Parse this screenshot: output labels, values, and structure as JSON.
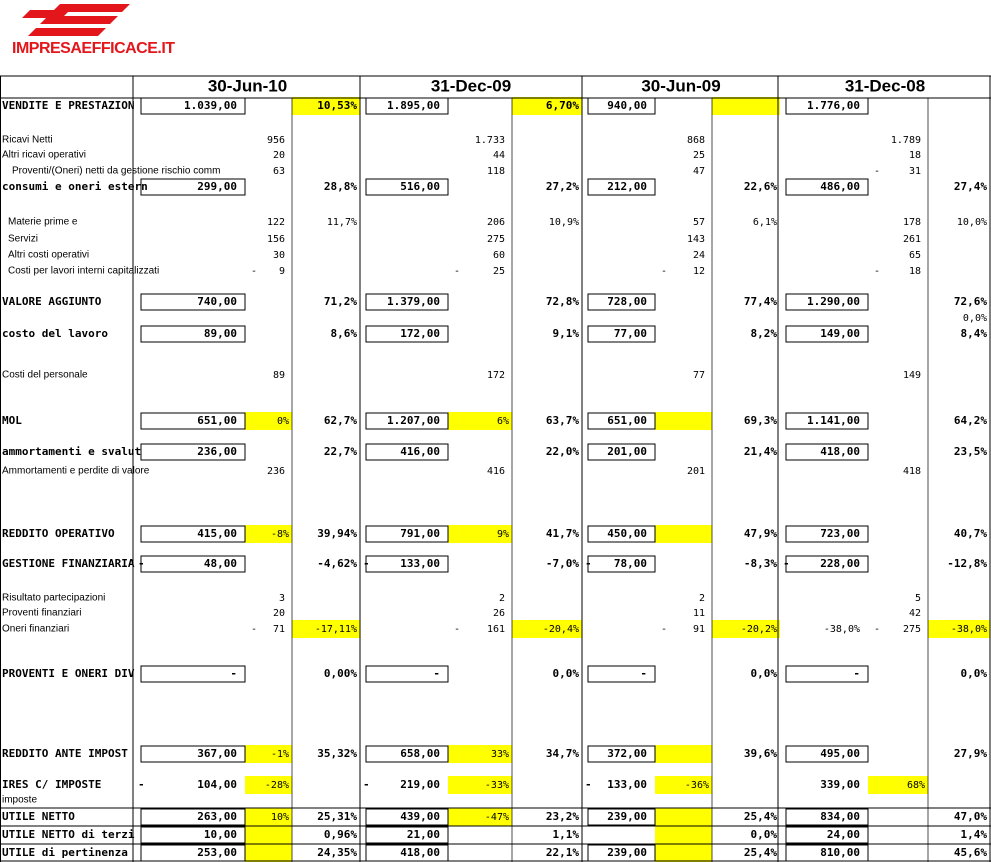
{
  "logo": {
    "text": "IMPRESAEFFICACE.IT"
  },
  "periods": [
    "30-Jun-10",
    "31-Dec-09",
    "30-Jun-09",
    "31-Dec-08"
  ],
  "highlight_color": "#ffff00",
  "rows": [
    {
      "label": "VENDITE E PRESTAZION",
      "style": "main",
      "cells": [
        {
          "value": "1.039,00",
          "pct": "10,53%",
          "highlight": [
            "pct"
          ]
        },
        {
          "value": "1.895,00",
          "pct": "6,70%",
          "highlight": [
            "pct"
          ]
        },
        {
          "value": "940,00",
          "highlight": [
            "pct"
          ]
        },
        {
          "value": "1.776,00"
        }
      ]
    },
    {
      "label": "Ricavi Netti",
      "style": "detail",
      "cells": [
        {
          "detail": "956"
        },
        {
          "detail": "1.733"
        },
        {
          "detail": "868"
        },
        {
          "detail": "1.789"
        }
      ]
    },
    {
      "label": "Altri ricavi operativi",
      "style": "detail",
      "cells": [
        {
          "detail": "20"
        },
        {
          "detail": "44"
        },
        {
          "detail": "25"
        },
        {
          "detail": "18"
        }
      ]
    },
    {
      "label": "Proventi/(Oneri) netti da gestione rischio comm",
      "style": "detail",
      "cells": [
        {
          "detail": "63"
        },
        {
          "detail": "118"
        },
        {
          "detail": "47"
        },
        {
          "detail": "31",
          "detail_sign": "-"
        }
      ]
    },
    {
      "label": "consumi e oneri estern",
      "style": "main",
      "cells": [
        {
          "value": "299,00",
          "pct": "28,8%"
        },
        {
          "value": "516,00",
          "pct": "27,2%"
        },
        {
          "value": "212,00",
          "pct": "22,6%"
        },
        {
          "value": "486,00",
          "pct": "27,4%"
        }
      ]
    },
    {
      "label": "Materie prime e",
      "style": "detail",
      "cells": [
        {
          "detail": "122",
          "pct": "11,7%"
        },
        {
          "detail": "206",
          "pct": "10,9%"
        },
        {
          "detail": "57",
          "pct": "6,1%"
        },
        {
          "detail": "178",
          "pct": "10,0%"
        }
      ]
    },
    {
      "label": "Servizi",
      "style": "detail",
      "cells": [
        {
          "detail": "156"
        },
        {
          "detail": "275"
        },
        {
          "detail": "143"
        },
        {
          "detail": "261"
        }
      ]
    },
    {
      "label": "Altri costi operativi",
      "style": "detail",
      "cells": [
        {
          "detail": "30"
        },
        {
          "detail": "60"
        },
        {
          "detail": "24"
        },
        {
          "detail": "65"
        }
      ]
    },
    {
      "label": "Costi per lavori interni capitalizzati",
      "style": "detail",
      "cells": [
        {
          "detail": "9",
          "detail_sign": "-"
        },
        {
          "detail": "25",
          "detail_sign": "-"
        },
        {
          "detail": "12",
          "detail_sign": "-"
        },
        {
          "detail": "18",
          "detail_sign": "-"
        }
      ]
    },
    {
      "label": "VALORE AGGIUNTO",
      "style": "main",
      "cells": [
        {
          "value": "740,00",
          "pct": "71,2%"
        },
        {
          "value": "1.379,00",
          "pct": "72,8%"
        },
        {
          "value": "728,00",
          "pct": "77,4%"
        },
        {
          "value": "1.290,00",
          "pct": "72,6%"
        }
      ]
    },
    {
      "style": "detail",
      "cells": [
        {},
        {},
        {},
        {
          "pct": "0,0%"
        }
      ]
    },
    {
      "label": "costo del lavoro",
      "style": "main",
      "cells": [
        {
          "value": "89,00",
          "pct": "8,6%"
        },
        {
          "value": "172,00",
          "pct": "9,1%"
        },
        {
          "value": "77,00",
          "pct": "8,2%"
        },
        {
          "value": "149,00",
          "pct": "8,4%"
        }
      ]
    },
    {
      "label": "Costi del personale",
      "style": "detail",
      "cells": [
        {
          "detail": "89"
        },
        {
          "detail": "172"
        },
        {
          "detail": "77"
        },
        {
          "detail": "149"
        }
      ]
    },
    {
      "label": "MOL",
      "style": "main",
      "cells": [
        {
          "value": "651,00",
          "change": "0%",
          "pct": "62,7%",
          "highlight": [
            "change"
          ]
        },
        {
          "value": "1.207,00",
          "change": "6%",
          "pct": "63,7%",
          "highlight": [
            "change"
          ]
        },
        {
          "value": "651,00",
          "pct": "69,3%",
          "highlight": [
            "change"
          ]
        },
        {
          "value": "1.141,00",
          "pct": "64,2%"
        }
      ]
    },
    {
      "label": "ammortamenti e svalut",
      "style": "main",
      "cells": [
        {
          "value": "236,00",
          "pct": "22,7%"
        },
        {
          "value": "416,00",
          "pct": "22,0%"
        },
        {
          "value": "201,00",
          "pct": "21,4%"
        },
        {
          "value": "418,00",
          "pct": "23,5%"
        }
      ]
    },
    {
      "label": "Ammortamenti e perdite di valore",
      "style": "detail",
      "cells": [
        {
          "detail": "236"
        },
        {
          "detail": "416"
        },
        {
          "detail": "201"
        },
        {
          "detail": "418"
        }
      ]
    },
    {
      "label": "REDDITO OPERATIVO",
      "style": "main",
      "cells": [
        {
          "value": "415,00",
          "change": "-8%",
          "pct": "39,94%",
          "highlight": [
            "change"
          ]
        },
        {
          "value": "791,00",
          "change": "9%",
          "pct": "41,7%",
          "highlight": [
            "change"
          ]
        },
        {
          "value": "450,00",
          "pct": "47,9%",
          "highlight": [
            "change"
          ]
        },
        {
          "value": "723,00",
          "pct": "40,7%"
        }
      ]
    },
    {
      "label": "GESTIONE FINANZIARIA",
      "style": "main",
      "cells": [
        {
          "sign": "-",
          "value": "48,00",
          "pct": "-4,62%"
        },
        {
          "sign": "-",
          "value": "133,00",
          "pct": "-7,0%"
        },
        {
          "sign": "-",
          "value": "78,00",
          "pct": "-8,3%"
        },
        {
          "sign": "-",
          "value": "228,00",
          "pct": "-12,8%"
        }
      ]
    },
    {
      "label": "Risultato partecipazioni",
      "style": "detail",
      "cells": [
        {
          "detail": "3"
        },
        {
          "detail": "2"
        },
        {
          "detail": "2"
        },
        {
          "detail": "5"
        }
      ]
    },
    {
      "label": "Proventi finanziari",
      "style": "detail",
      "cells": [
        {
          "detail": "20"
        },
        {
          "detail": "26"
        },
        {
          "detail": "11"
        },
        {
          "detail": "42"
        }
      ]
    },
    {
      "label": "Oneri finanziari",
      "style": "detail",
      "cells": [
        {
          "detail": "71",
          "detail_sign": "-",
          "pct": "-17,11%",
          "highlight": [
            "pct"
          ]
        },
        {
          "detail": "161",
          "detail_sign": "-",
          "pct": "-20,4%",
          "highlight": [
            "pct"
          ]
        },
        {
          "detail": "91",
          "detail_sign": "-",
          "pct": "-20,2%",
          "highlight": [
            "pct"
          ]
        },
        {
          "value": "-38,0%",
          "detail": "275",
          "detail_sign": "-",
          "pct": "-38,0%",
          "highlight": [
            "pct"
          ]
        }
      ]
    },
    {
      "label": "PROVENTI E ONERI DIV",
      "style": "main",
      "cells": [
        {
          "value": "-",
          "pct": "0,00%"
        },
        {
          "value": "-",
          "pct": "0,0%"
        },
        {
          "value": "-",
          "pct": "0,0%"
        },
        {
          "value": "-",
          "pct": "0,0%"
        }
      ]
    },
    {
      "label": "REDDITO ANTE IMPOST",
      "style": "main",
      "cells": [
        {
          "value": "367,00",
          "change": "-1%",
          "pct": "35,32%",
          "highlight": [
            "change"
          ]
        },
        {
          "value": "658,00",
          "change": "33%",
          "pct": "34,7%",
          "highlight": [
            "change"
          ]
        },
        {
          "value": "372,00",
          "pct": "39,6%",
          "highlight": [
            "change"
          ]
        },
        {
          "value": "495,00",
          "pct": "27,9%"
        }
      ]
    },
    {
      "label": "IRES C/ IMPOSTE",
      "style": "plain",
      "cells": [
        {
          "sign": "-",
          "value": "104,00",
          "change": "-28%",
          "highlight": [
            "change"
          ]
        },
        {
          "sign": "-",
          "value": "219,00",
          "change": "-33%",
          "highlight": [
            "change"
          ]
        },
        {
          "sign": "-",
          "value": "133,00",
          "change": "-36%",
          "highlight": [
            "change"
          ]
        },
        {
          "value": "339,00",
          "change": "68%",
          "highlight": [
            "change"
          ]
        }
      ]
    },
    {
      "label": "imposte",
      "style": "detail",
      "cells": []
    },
    {
      "label": "UTILE NETTO",
      "style": "main",
      "cells": [
        {
          "value": "263,00",
          "change": "10%",
          "pct": "25,31%",
          "highlight": [
            "change"
          ]
        },
        {
          "value": "439,00",
          "change": "-47%",
          "pct": "23,2%",
          "highlight": [
            "change"
          ]
        },
        {
          "value": "239,00",
          "pct": "25,4%",
          "highlight": [
            "change"
          ]
        },
        {
          "value": "834,00",
          "pct": "47,0%"
        }
      ]
    },
    {
      "label": "UTILE NETTO di terzi",
      "style": "main",
      "cells": [
        {
          "value": "10,00",
          "pct": "0,96%",
          "highlight": [
            "change"
          ]
        },
        {
          "value": "21,00",
          "pct": "1,1%"
        },
        {
          "pct": "0,0%",
          "highlight": [
            "change"
          ]
        },
        {
          "value": "24,00",
          "pct": "1,4%"
        }
      ]
    },
    {
      "label": "UTILE di pertinenza",
      "style": "main",
      "cells": [
        {
          "value": "253,00",
          "pct": "24,35%",
          "highlight": [
            "change"
          ]
        },
        {
          "value": "418,00",
          "pct": "22,1%"
        },
        {
          "value": "239,00",
          "pct": "25,4%",
          "highlight": [
            "change"
          ]
        },
        {
          "value": "810,00",
          "pct": "45,6%"
        }
      ]
    }
  ]
}
